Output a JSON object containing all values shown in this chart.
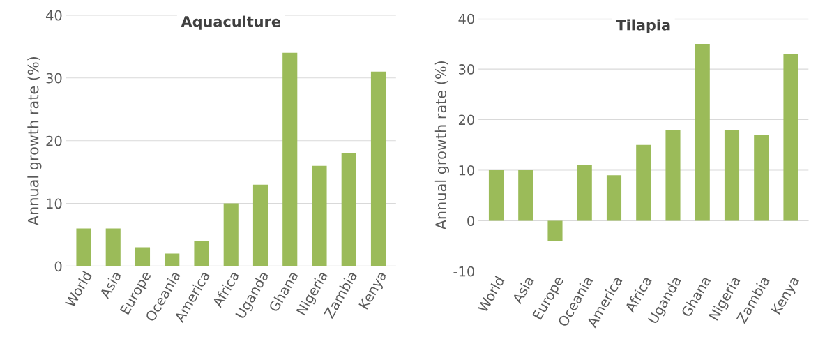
{
  "chart_data": [
    {
      "type": "bar",
      "title": "Aquaculture",
      "ylabel": "Annual growth rate (%)",
      "categories": [
        "World",
        "Asia",
        "Europe",
        "Oceania",
        "America",
        "Africa",
        "Uganda",
        "Ghana",
        "Nigeria",
        "Zambia",
        "Kenya"
      ],
      "values": [
        6,
        6,
        3,
        2,
        4,
        10,
        13,
        34,
        16,
        18,
        31
      ],
      "color": "#9bbb59",
      "ylim": [
        0,
        40
      ],
      "yticks": [
        0,
        10,
        20,
        30,
        40
      ],
      "grid": "y"
    },
    {
      "type": "bar",
      "title": "Tilapia",
      "ylabel": "Annual growth rate (%)",
      "categories": [
        "World",
        "Asia",
        "Europe",
        "Oceania",
        "America",
        "Africa",
        "Uganda",
        "Ghana",
        "Nigeria",
        "Zambia",
        "Kenya"
      ],
      "values": [
        10,
        10,
        -4,
        11,
        9,
        15,
        18,
        35,
        18,
        17,
        33
      ],
      "color": "#9bbb59",
      "ylim": [
        -10,
        40
      ],
      "yticks": [
        -10,
        0,
        10,
        20,
        30,
        40
      ],
      "grid": "y"
    }
  ]
}
